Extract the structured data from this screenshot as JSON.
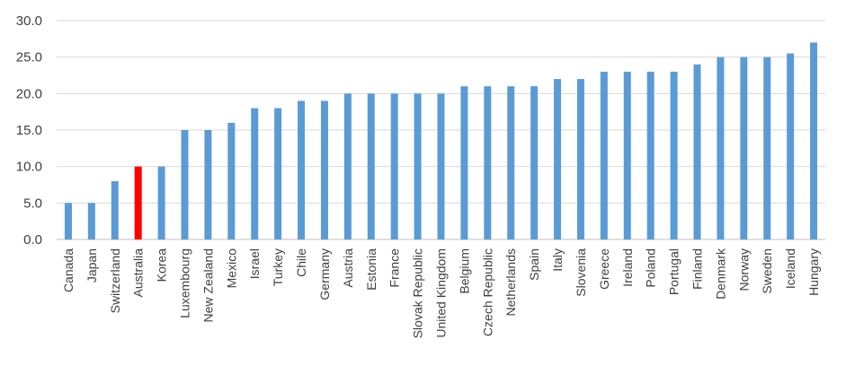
{
  "chart_data": {
    "type": "bar",
    "title": "",
    "xlabel": "",
    "ylabel": "",
    "ylim": [
      0,
      30
    ],
    "yticks": [
      0,
      5,
      10,
      15,
      20,
      25,
      30
    ],
    "ytick_labels": [
      "0.0",
      "5.0",
      "10.0",
      "15.0",
      "20.0",
      "25.0",
      "30.0"
    ],
    "grid": true,
    "legend": "none",
    "categories": [
      "Canada",
      "Japan",
      "Switzerland",
      "Australia",
      "Korea",
      "Luxembourg",
      "New Zealand",
      "Mexico",
      "Israel",
      "Turkey",
      "Chile",
      "Germany",
      "Austria",
      "Estonia",
      "France",
      "Slovak Republic",
      "United Kingdom",
      "Belgium",
      "Czech Republic",
      "Netherlands",
      "Spain",
      "Italy",
      "Slovenia",
      "Greece",
      "Ireland",
      "Poland",
      "Portugal",
      "Finland",
      "Denmark",
      "Norway",
      "Sweden",
      "Iceland",
      "Hungary"
    ],
    "values": [
      5,
      5,
      8,
      10,
      10,
      15,
      15,
      16,
      18,
      18,
      19,
      19,
      20,
      20,
      20,
      20,
      20,
      21,
      21,
      21,
      21,
      22,
      22,
      23,
      23,
      23,
      23,
      24,
      25,
      25,
      25,
      25.5,
      27
    ],
    "bar_color": "#5b9bd5",
    "highlight": {
      "category": "Australia",
      "color": "#ff0000"
    }
  }
}
